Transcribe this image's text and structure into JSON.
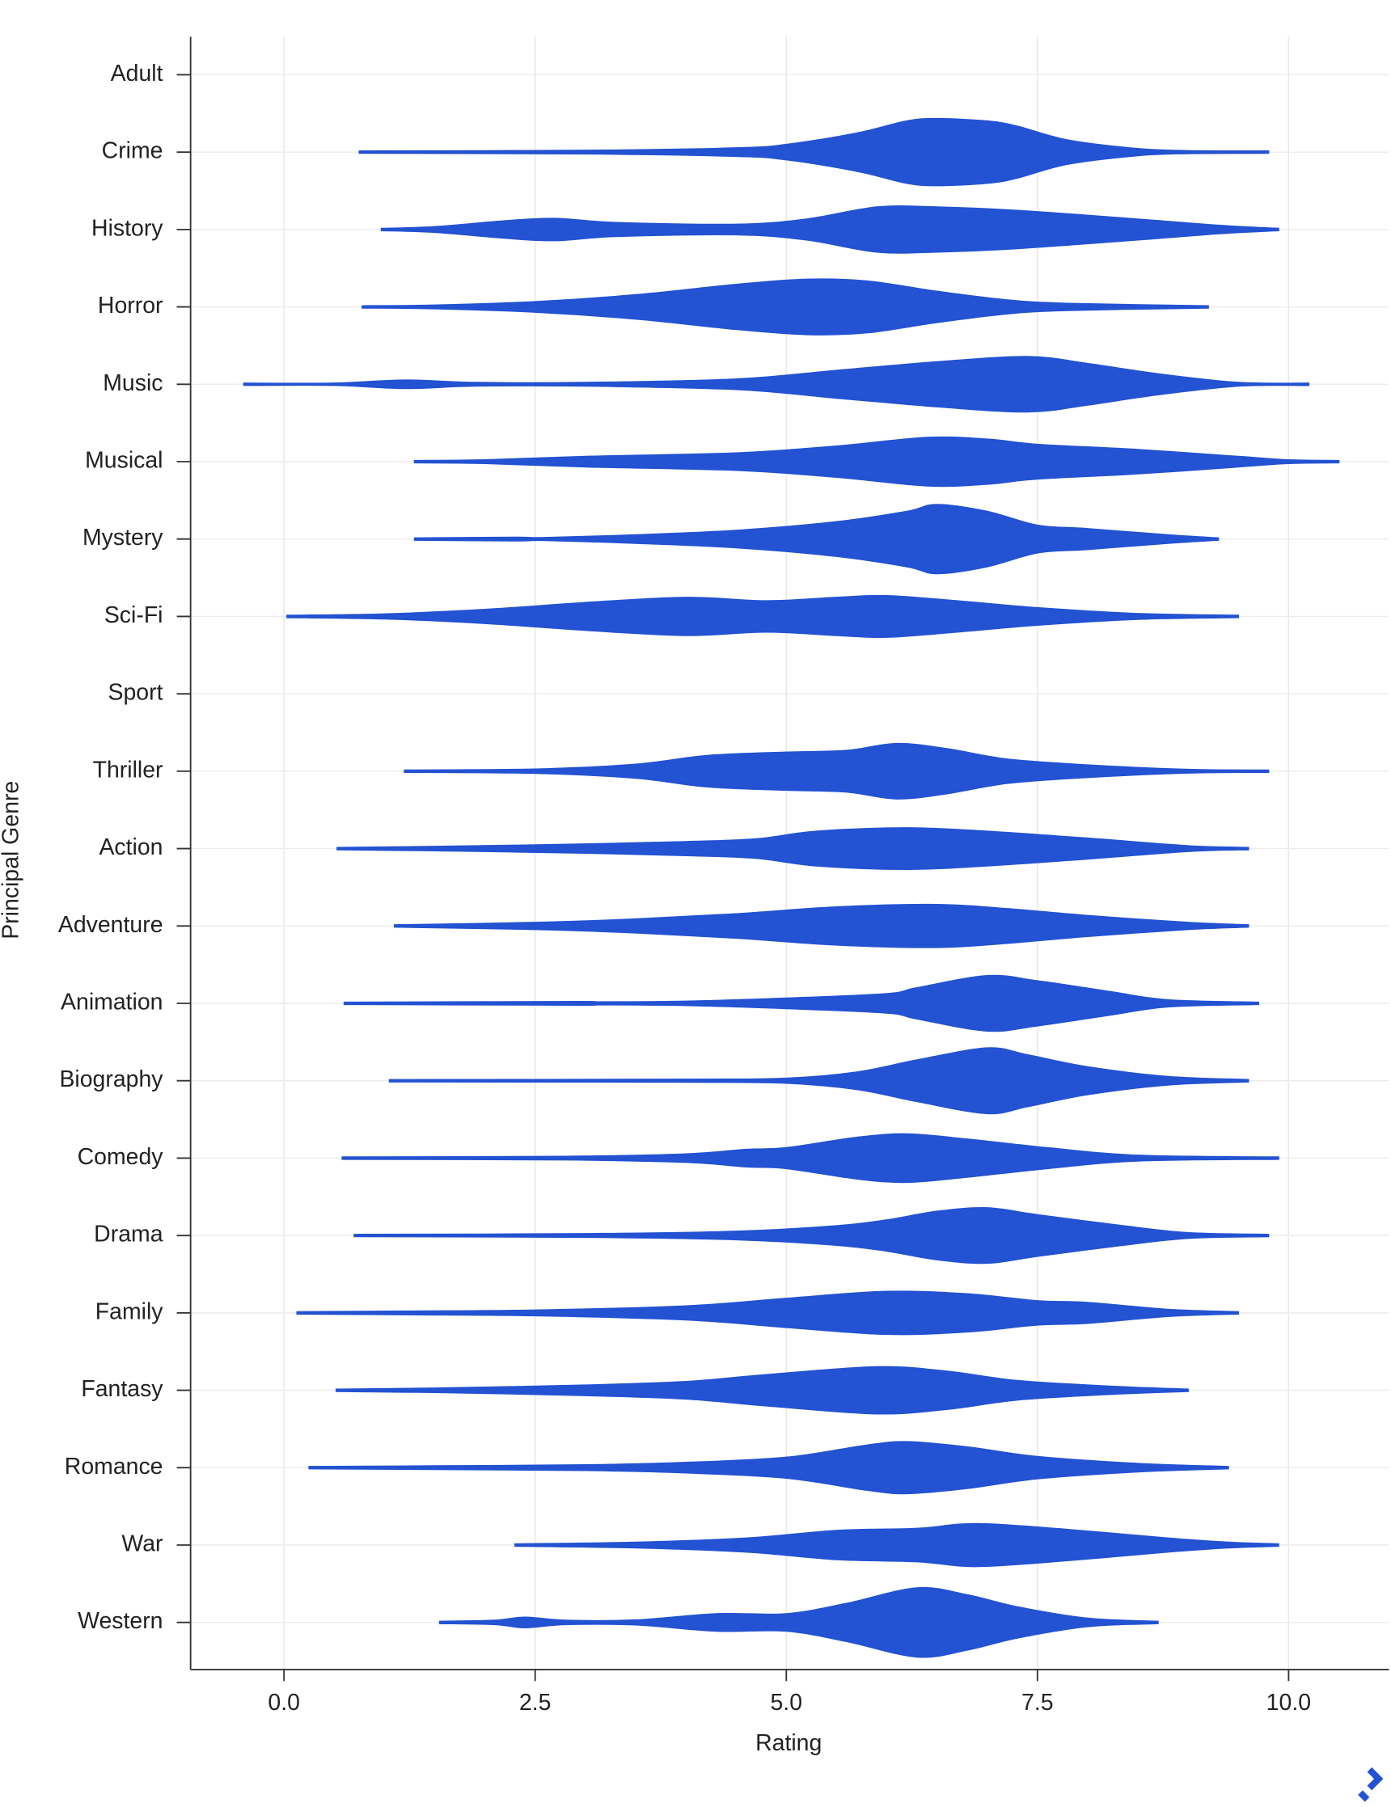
{
  "chart_data": {
    "type": "violin",
    "x_label": "Rating",
    "y_label": "Principal Genre",
    "color": "#2352d2",
    "grid": true,
    "xlim": [
      -0.93,
      11.0
    ],
    "xticks": [
      {
        "value": 0,
        "label": "0.0"
      },
      2.5,
      {
        "value": 5,
        "label": "5.0"
      },
      7.5,
      {
        "value": 10,
        "label": "10.0"
      }
    ],
    "categories": [
      "Adult",
      "Crime",
      "History",
      "Horror",
      "Music",
      "Musical",
      "Mystery",
      "Sci-Fi",
      "Sport",
      "Thriller",
      "Action",
      "Adventure",
      "Animation",
      "Biography",
      "Comedy",
      "Drama",
      "Family",
      "Fantasy",
      "Romance",
      "War",
      "Western"
    ],
    "violins": [
      null,
      {
        "x": [
          0.75,
          3,
          4.5,
          5.0,
          5.7,
          6.2,
          6.5,
          7.0,
          7.3,
          7.8,
          8.5,
          9.0,
          9.8
        ],
        "density": [
          0.03,
          0.05,
          0.12,
          0.22,
          0.55,
          0.9,
          0.97,
          0.9,
          0.75,
          0.35,
          0.1,
          0.04,
          0.03
        ]
      },
      {
        "x": [
          0.97,
          1.5,
          2.2,
          2.7,
          3.3,
          4.5,
          5.2,
          5.9,
          6.5,
          7.3,
          8.5,
          9.3,
          9.9
        ],
        "density": [
          0.03,
          0.08,
          0.25,
          0.32,
          0.2,
          0.15,
          0.3,
          0.65,
          0.65,
          0.55,
          0.3,
          0.12,
          0.03
        ]
      },
      {
        "x": [
          0.78,
          1.5,
          2.5,
          3.5,
          4.5,
          5.2,
          5.8,
          6.5,
          7.2,
          7.8,
          9.2
        ],
        "density": [
          0.03,
          0.05,
          0.15,
          0.35,
          0.65,
          0.8,
          0.75,
          0.45,
          0.2,
          0.1,
          0.03
        ]
      },
      {
        "x": [
          -0.4,
          0.5,
          1.2,
          1.9,
          3,
          4.5,
          5.5,
          6.5,
          7.4,
          8,
          8.7,
          9.5,
          10.2
        ],
        "density": [
          0.03,
          0.03,
          0.12,
          0.05,
          0.05,
          0.15,
          0.4,
          0.65,
          0.8,
          0.6,
          0.3,
          0.05,
          0.03
        ]
      },
      {
        "x": [
          1.3,
          2,
          3,
          4.5,
          5.5,
          6.4,
          7,
          7.5,
          8.5,
          9.5,
          10,
          10.5
        ],
        "density": [
          0.03,
          0.05,
          0.15,
          0.25,
          0.45,
          0.7,
          0.65,
          0.5,
          0.35,
          0.15,
          0.05,
          0.03
        ]
      },
      {
        "x": [
          1.3,
          2.3,
          2.6,
          3.5,
          4.5,
          5.5,
          6.2,
          6.5,
          7.0,
          7.5,
          8,
          8.8,
          9.3
        ],
        "density": [
          0.03,
          0.05,
          0.04,
          0.12,
          0.25,
          0.5,
          0.8,
          1.0,
          0.8,
          0.4,
          0.3,
          0.12,
          0.03
        ]
      },
      {
        "x": [
          0.03,
          1,
          2,
          3,
          4,
          4.8,
          5.5,
          6,
          6.7,
          7.5,
          8.5,
          9.5
        ],
        "density": [
          0.03,
          0.07,
          0.2,
          0.4,
          0.55,
          0.45,
          0.55,
          0.6,
          0.45,
          0.25,
          0.08,
          0.03
        ]
      },
      null,
      {
        "x": [
          1.2,
          2.5,
          3.5,
          4.2,
          5,
          5.6,
          6.1,
          6.6,
          7.2,
          8,
          9,
          9.8
        ],
        "density": [
          0.03,
          0.06,
          0.2,
          0.45,
          0.55,
          0.6,
          0.8,
          0.65,
          0.35,
          0.18,
          0.05,
          0.03
        ]
      },
      {
        "x": [
          0.53,
          1.5,
          3,
          4,
          4.7,
          5.3,
          6.2,
          7,
          8,
          9,
          9.6
        ],
        "density": [
          0.03,
          0.06,
          0.13,
          0.2,
          0.28,
          0.5,
          0.6,
          0.5,
          0.3,
          0.08,
          0.03
        ]
      },
      {
        "x": [
          1.1,
          2.5,
          3.5,
          4.5,
          5.5,
          6.5,
          7.2,
          8,
          9,
          9.6
        ],
        "density": [
          0.03,
          0.1,
          0.2,
          0.35,
          0.55,
          0.62,
          0.5,
          0.3,
          0.1,
          0.03
        ]
      },
      {
        "x": [
          0.6,
          2.9,
          3.1,
          4,
          5,
          6,
          6.3,
          7,
          7.5,
          8.2,
          8.8,
          9.7
        ],
        "density": [
          0.03,
          0.05,
          0.04,
          0.06,
          0.15,
          0.28,
          0.45,
          0.8,
          0.65,
          0.35,
          0.1,
          0.03
        ]
      },
      {
        "x": [
          1.05,
          4,
          5,
          5.7,
          6.3,
          7,
          7.4,
          8,
          8.8,
          9.6
        ],
        "density": [
          0.03,
          0.04,
          0.07,
          0.25,
          0.6,
          0.95,
          0.75,
          0.4,
          0.12,
          0.03
        ]
      },
      {
        "x": [
          0.58,
          2.8,
          4,
          4.6,
          5,
          5.7,
          6.2,
          6.8,
          7.6,
          8.5,
          9.9
        ],
        "density": [
          0.03,
          0.05,
          0.12,
          0.25,
          0.3,
          0.6,
          0.7,
          0.55,
          0.3,
          0.08,
          0.03
        ]
      },
      {
        "x": [
          0.7,
          3,
          4.5,
          5.5,
          6,
          6.5,
          7,
          7.5,
          8.3,
          9,
          9.8
        ],
        "density": [
          0.03,
          0.05,
          0.12,
          0.28,
          0.45,
          0.7,
          0.8,
          0.6,
          0.3,
          0.08,
          0.03
        ]
      },
      {
        "x": [
          0.13,
          1.2,
          2.5,
          4,
          5,
          6,
          6.8,
          7.5,
          8,
          8.8,
          9.5
        ],
        "density": [
          0.03,
          0.05,
          0.08,
          0.2,
          0.42,
          0.62,
          0.55,
          0.35,
          0.3,
          0.1,
          0.03
        ]
      },
      {
        "x": [
          0.52,
          1.5,
          3,
          4,
          4.8,
          5.9,
          6.6,
          7.3,
          8.2,
          9
        ],
        "density": [
          0.03,
          0.06,
          0.15,
          0.25,
          0.45,
          0.68,
          0.55,
          0.28,
          0.12,
          0.03
        ]
      },
      {
        "x": [
          0.25,
          1.5,
          3,
          4,
          5,
          5.8,
          6.2,
          6.8,
          7.5,
          8.5,
          9.4
        ],
        "density": [
          0.03,
          0.05,
          0.08,
          0.15,
          0.3,
          0.65,
          0.75,
          0.6,
          0.32,
          0.12,
          0.03
        ]
      },
      {
        "x": [
          2.3,
          3.5,
          4.6,
          5.5,
          6.3,
          6.9,
          7.8,
          8.8,
          9.4,
          9.9
        ],
        "density": [
          0.03,
          0.08,
          0.2,
          0.42,
          0.48,
          0.62,
          0.45,
          0.2,
          0.08,
          0.03
        ]
      },
      {
        "x": [
          1.55,
          2.1,
          2.4,
          2.8,
          3.5,
          4.3,
          5,
          5.6,
          6.3,
          6.8,
          7.3,
          8,
          8.7
        ],
        "density": [
          0.03,
          0.06,
          0.15,
          0.06,
          0.07,
          0.25,
          0.25,
          0.55,
          1.0,
          0.8,
          0.45,
          0.12,
          0.03
        ]
      }
    ]
  }
}
